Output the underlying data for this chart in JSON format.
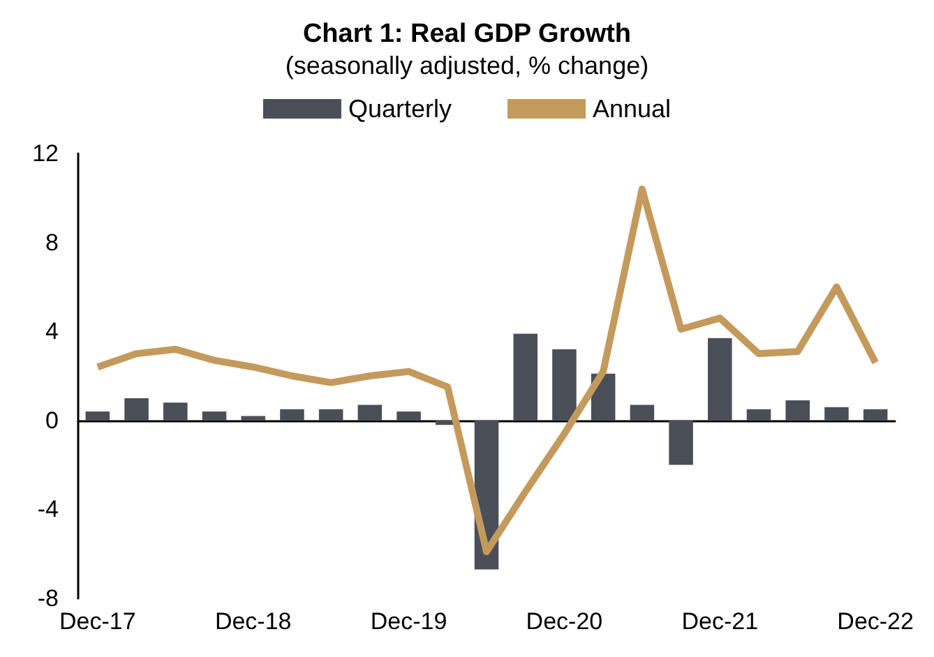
{
  "chart_data": {
    "type": "bar",
    "title": "Chart 1: Real GDP Growth",
    "subtitle": "(seasonally adjusted, % change)",
    "categories": [
      "Dec-17",
      null,
      null,
      null,
      "Dec-18",
      null,
      null,
      null,
      "Dec-19",
      null,
      null,
      null,
      "Dec-20",
      null,
      null,
      null,
      "Dec-21",
      null,
      null,
      null,
      "Dec-22"
    ],
    "series": [
      {
        "name": "Quarterly",
        "color": "#4a4f57",
        "values": [
          0.4,
          1.0,
          0.8,
          0.4,
          0.2,
          0.5,
          0.5,
          0.7,
          0.4,
          -0.2,
          -6.7,
          3.9,
          3.2,
          2.1,
          0.7,
          -2.0,
          3.7,
          0.5,
          0.9,
          0.6,
          0.5
        ]
      },
      {
        "name": "Annual",
        "type": "line",
        "color": "#c49a5c",
        "marker": "none",
        "values": [
          2.4,
          3.0,
          3.2,
          2.7,
          2.4,
          2.0,
          1.7,
          2.0,
          2.2,
          1.5,
          -5.9,
          -3.2,
          -0.6,
          2.2,
          10.4,
          4.1,
          4.6,
          3.0,
          3.1,
          6.0,
          2.6
        ]
      }
    ],
    "ylim": [
      -8,
      12
    ],
    "yticks": [
      -8,
      -4,
      0,
      4,
      8,
      12
    ],
    "legend": "top"
  }
}
